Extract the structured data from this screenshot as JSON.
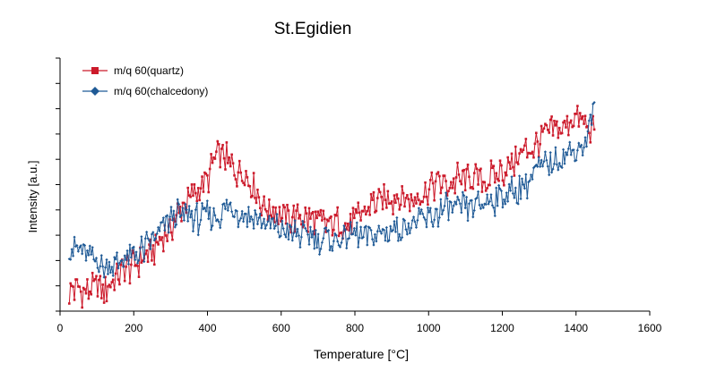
{
  "chart_data": {
    "type": "line",
    "title": "St.Egidien",
    "xlabel": "Temperature [°C]",
    "ylabel": "Intensity [a.u.]",
    "xlim": [
      0,
      1600
    ],
    "xticks": [
      0,
      200,
      400,
      600,
      800,
      1000,
      1200,
      1400,
      1600
    ],
    "ylim": [
      0,
      100
    ],
    "yticks_labeled": false,
    "grid": false,
    "legend": "top-left",
    "series": [
      {
        "name": "m/q 60(quartz)",
        "color": "#cc1a2b",
        "marker": "square",
        "x": [
          25,
          50,
          75,
          100,
          125,
          150,
          175,
          200,
          225,
          250,
          275,
          300,
          325,
          350,
          375,
          400,
          425,
          450,
          475,
          500,
          525,
          550,
          575,
          600,
          625,
          650,
          675,
          700,
          725,
          750,
          775,
          800,
          825,
          850,
          875,
          900,
          925,
          950,
          975,
          1000,
          1025,
          1050,
          1075,
          1100,
          1125,
          1150,
          1175,
          1200,
          1225,
          1250,
          1275,
          1300,
          1325,
          1350,
          1375,
          1400,
          1425,
          1450
        ],
        "values": [
          8,
          9,
          8,
          9,
          9,
          12,
          16,
          18,
          21,
          24,
          28,
          33,
          40,
          44,
          48,
          52,
          62,
          60,
          56,
          55,
          50,
          42,
          40,
          38,
          36,
          37,
          36,
          35,
          34,
          35,
          33,
          36,
          39,
          43,
          44,
          45,
          45,
          44,
          46,
          48,
          51,
          50,
          52,
          52,
          53,
          52,
          53,
          55,
          58,
          62,
          64,
          67,
          70,
          72,
          74,
          76,
          73,
          70
        ]
      },
      {
        "name": "m/q 60(chalcedony)",
        "color": "#1f5a96",
        "marker": "diamond",
        "x": [
          25,
          50,
          75,
          100,
          125,
          150,
          175,
          200,
          225,
          250,
          275,
          300,
          325,
          350,
          375,
          400,
          425,
          450,
          475,
          500,
          525,
          550,
          575,
          600,
          625,
          650,
          675,
          700,
          725,
          750,
          775,
          800,
          825,
          850,
          875,
          900,
          925,
          950,
          975,
          1000,
          1025,
          1050,
          1075,
          1100,
          1125,
          1150,
          1175,
          1200,
          1225,
          1250,
          1275,
          1300,
          1325,
          1350,
          1375,
          1400,
          1425,
          1450
        ],
        "values": [
          26,
          24,
          22,
          20,
          18,
          18,
          20,
          22,
          24,
          28,
          32,
          37,
          38,
          38,
          36,
          38,
          38,
          40,
          40,
          38,
          37,
          35,
          33,
          32,
          31,
          30,
          30,
          29,
          29,
          28,
          29,
          30,
          30,
          30,
          31,
          32,
          33,
          34,
          35,
          37,
          39,
          40,
          40,
          41,
          42,
          43,
          44,
          45,
          47,
          49,
          52,
          56,
          58,
          60,
          62,
          64,
          66,
          82
        ]
      }
    ]
  }
}
